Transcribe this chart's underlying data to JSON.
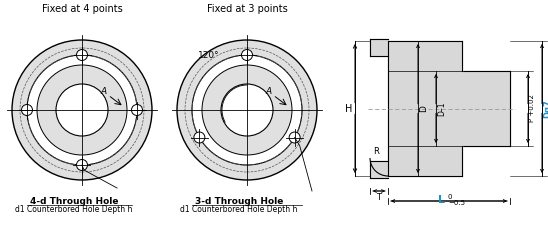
{
  "title_left": "Fixed at 4 points",
  "title_right": "Fixed at 3 points",
  "label_4d": "4-d Through Hole",
  "label_4d_sub": "d1 Counterbored Hole Depth h",
  "label_3d": "3-d Through Hole",
  "label_3d_sub": "d1 Counterbored Hole Depth h",
  "angle_label": "120°",
  "dim_H": "H",
  "dim_R": "R",
  "dim_T": "T",
  "dim_L": "L",
  "dim_L_tol": "−0.5",
  "dim_L_top": "0",
  "dim_D": "D",
  "dim_D1": "D–1",
  "dim_P": "P +0.02",
  "dim_Dg": "Dg7",
  "dim_A": "A",
  "flange_color": "#d8d8d8",
  "ring_color": "#e0e0e0",
  "white": "#ffffff",
  "cyan": "#1e90c8",
  "black": "#000000",
  "dashed_color": "#888888"
}
